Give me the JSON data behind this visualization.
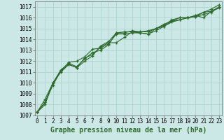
{
  "title": "Graphe pression niveau de la mer (hPa)",
  "background_color": "#cce8e6",
  "grid_color": "#aacfcc",
  "line_color": "#2d6a2d",
  "marker_color": "#2d6a2d",
  "xlim": [
    -0.3,
    23.3
  ],
  "ylim": [
    1007,
    1017.5
  ],
  "yticks": [
    1007,
    1008,
    1009,
    1010,
    1011,
    1012,
    1013,
    1014,
    1015,
    1016,
    1017
  ],
  "xticks": [
    0,
    1,
    2,
    3,
    4,
    5,
    6,
    7,
    8,
    9,
    10,
    11,
    12,
    13,
    14,
    15,
    16,
    17,
    18,
    19,
    20,
    21,
    22,
    23
  ],
  "series": [
    [
      1007.3,
      1008.5,
      1010.0,
      1011.2,
      1011.8,
      1011.5,
      1012.2,
      1012.8,
      1013.0,
      1013.5,
      1014.6,
      1014.6,
      1014.8,
      1014.7,
      1014.7,
      1015.0,
      1015.3,
      1015.8,
      1016.0,
      1016.0,
      1016.2,
      1016.5,
      1016.8,
      1017.2
    ],
    [
      1007.3,
      1008.2,
      1009.8,
      1011.1,
      1011.9,
      1012.0,
      1012.4,
      1013.1,
      1013.2,
      1013.6,
      1014.5,
      1014.5,
      1014.6,
      1014.6,
      1014.5,
      1015.0,
      1015.2,
      1015.7,
      1015.8,
      1016.0,
      1016.1,
      1016.5,
      1016.6,
      1017.0
    ],
    [
      1007.3,
      1008.0,
      1010.0,
      1011.0,
      1011.7,
      1011.4,
      1012.0,
      1012.5,
      1013.4,
      1013.8,
      1014.6,
      1014.7,
      1014.7,
      1014.7,
      1014.8,
      1015.0,
      1015.4,
      1015.7,
      1016.0,
      1016.0,
      1016.2,
      1016.0,
      1016.6,
      1016.9
    ],
    [
      1007.3,
      1008.2,
      1010.0,
      1011.1,
      1011.7,
      1011.4,
      1012.3,
      1012.6,
      1013.3,
      1013.7,
      1013.7,
      1014.2,
      1014.7,
      1014.6,
      1014.5,
      1014.8,
      1015.2,
      1015.6,
      1015.8,
      1016.0,
      1016.1,
      1016.3,
      1016.5,
      1017.0
    ]
  ],
  "marker_size": 3.5,
  "linewidth": 0.8,
  "title_fontsize": 7,
  "tick_fontsize": 5.5
}
